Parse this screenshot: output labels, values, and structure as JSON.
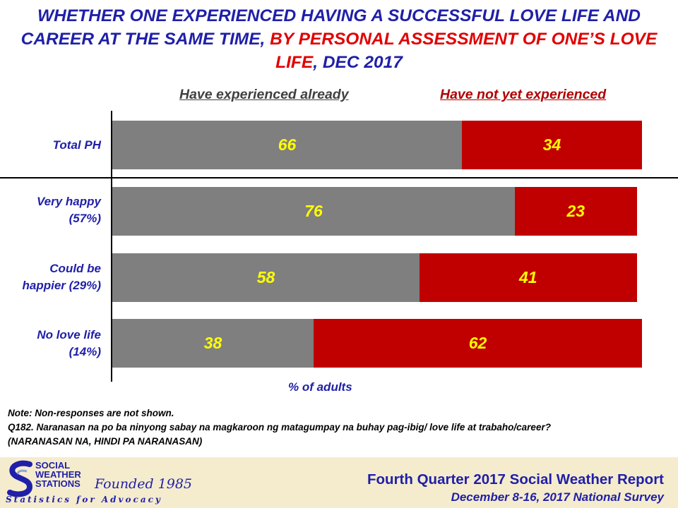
{
  "title": {
    "part1": "WHETHER ONE EXPERIENCED HAVING A SUCCESSFUL LOVE LIFE AND CAREER AT THE SAME TIME, ",
    "part2": "BY PERSONAL ASSESSMENT OF ONE’S LOVE LIFE",
    "part3": ", DEC 2017"
  },
  "legend": {
    "experienced": "Have experienced already",
    "not_experienced": "Have not yet experienced"
  },
  "categories": [
    {
      "line1": "Total PH",
      "line2": ""
    },
    {
      "line1": "Very happy",
      "line2": "(57%)"
    },
    {
      "line1": "Could be",
      "line2": "happier (29%)"
    },
    {
      "line1": "No love life",
      "line2": "(14%)"
    }
  ],
  "chart_data": {
    "type": "bar",
    "orientation": "horizontal",
    "stacked": true,
    "categories": [
      "Total PH",
      "Very happy (57%)",
      "Could be happier (29%)",
      "No love life (14%)"
    ],
    "series": [
      {
        "name": "Have experienced already",
        "values": [
          66,
          76,
          58,
          38
        ],
        "color": "#7f7f7f"
      },
      {
        "name": "Have not yet experienced",
        "values": [
          34,
          23,
          41,
          62
        ],
        "color": "#c00000"
      }
    ],
    "xlabel": "% of adults",
    "xlim": [
      0,
      100
    ],
    "data_label_color": "#ffff00",
    "legend_position": "top"
  },
  "notes": {
    "note": "Note: Non-responses are not shown.",
    "question": "Q182. Naranasan na po ba ninyong sabay na magkaroon ng matagumpay na buhay pag-ibig/  love life at trabaho/career?",
    "options": "(NARANASAN NA, HINDI PA NARANASAN)"
  },
  "footer": {
    "logo_line1": "SOCIAL",
    "logo_line2": "WEATHER",
    "logo_line3": "STATIONS",
    "founded": "Founded 1985",
    "tagline": "Statistics for Advocacy",
    "report": "Fourth Quarter 2017 Social Weather Report",
    "survey": "December 8-16, 2017 National Survey"
  },
  "colors": {
    "title_blue": "#1f1fa8",
    "title_red": "#e00000",
    "footer_bg": "#f5ecce"
  }
}
